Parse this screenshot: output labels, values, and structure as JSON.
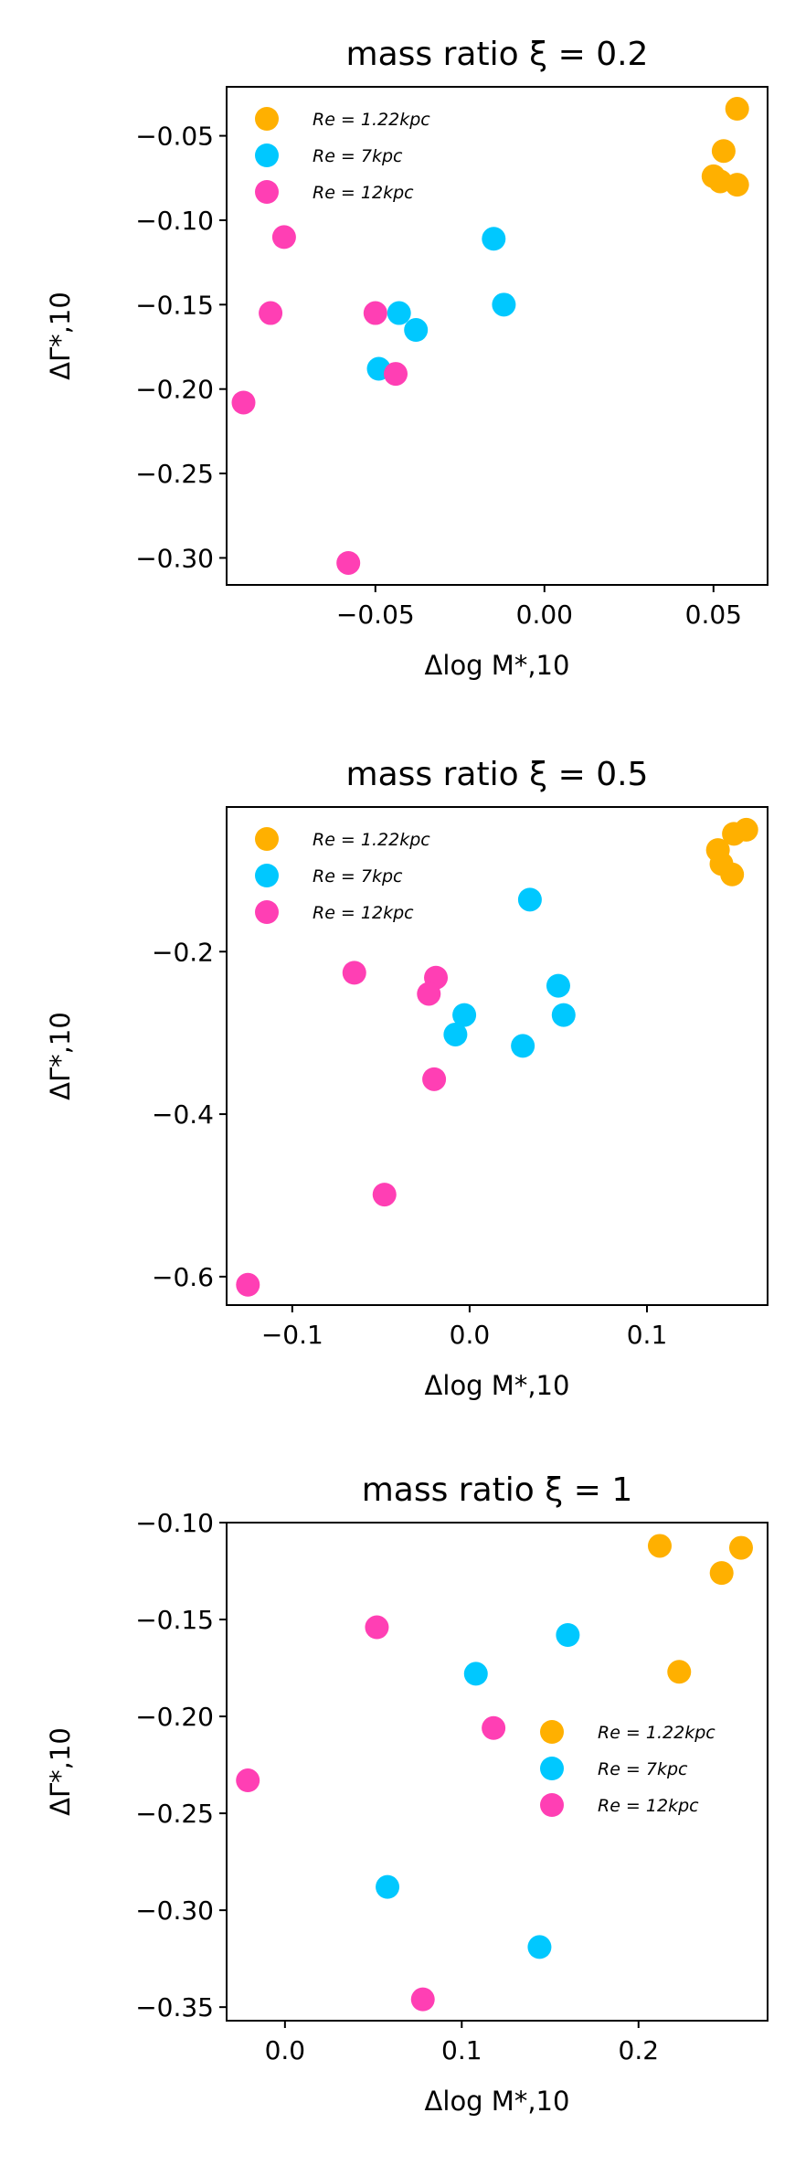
{
  "figure": {
    "colors": {
      "orange": "#FFB000",
      "cyan": "#00C8FF",
      "magenta": "#FF3FB4"
    },
    "xlabel": "Δlog M*,10",
    "ylabel": "ΔΓ*,10"
  },
  "chart_data": [
    {
      "type": "scatter",
      "title": "mass ratio ξ = 0.2",
      "xlabel": "Δlog M*,10",
      "ylabel": "ΔΓ*,10",
      "xlim": [
        -0.094,
        0.066
      ],
      "ylim": [
        -0.316,
        -0.021
      ],
      "xticks": [
        -0.05,
        0.0,
        0.05
      ],
      "xtick_labels": [
        "−0.05",
        "0.00",
        "0.05"
      ],
      "yticks": [
        -0.05,
        -0.1,
        -0.15,
        -0.2,
        -0.25,
        -0.3
      ],
      "ytick_labels": [
        "−0.05",
        "−0.10",
        "−0.15",
        "−0.20",
        "−0.25",
        "−0.30"
      ],
      "legend": "top-left",
      "series": [
        {
          "name": "Re = 1.22kpc",
          "color": "#FFB000",
          "points": [
            [
              0.057,
              -0.034
            ],
            [
              0.053,
              -0.059
            ],
            [
              0.05,
              -0.074
            ],
            [
              0.052,
              -0.077
            ],
            [
              0.057,
              -0.079
            ]
          ]
        },
        {
          "name": "Re = 7kpc",
          "color": "#00C8FF",
          "points": [
            [
              -0.015,
              -0.111
            ],
            [
              -0.012,
              -0.15
            ],
            [
              -0.043,
              -0.155
            ],
            [
              -0.038,
              -0.165
            ],
            [
              -0.049,
              -0.188
            ]
          ]
        },
        {
          "name": "Re = 12kpc",
          "color": "#FF3FB4",
          "points": [
            [
              -0.077,
              -0.11
            ],
            [
              -0.081,
              -0.155
            ],
            [
              -0.05,
              -0.155
            ],
            [
              -0.044,
              -0.191
            ],
            [
              -0.089,
              -0.208
            ],
            [
              -0.058,
              -0.303
            ]
          ]
        }
      ]
    },
    {
      "type": "scatter",
      "title": "mass ratio ξ = 0.5",
      "xlabel": "Δlog M*,10",
      "ylabel": "ΔΓ*,10",
      "xlim": [
        -0.137,
        0.168
      ],
      "ylim": [
        -0.635,
        -0.022
      ],
      "xticks": [
        -0.1,
        0.0,
        0.1
      ],
      "xtick_labels": [
        "−0.1",
        "0.0",
        "0.1"
      ],
      "yticks": [
        -0.2,
        -0.4,
        -0.6
      ],
      "ytick_labels": [
        "−0.2",
        "−0.4",
        "−0.6"
      ],
      "legend": "top-left",
      "series": [
        {
          "name": "Re = 1.22kpc",
          "color": "#FFB000",
          "points": [
            [
              0.156,
              -0.05
            ],
            [
              0.149,
              -0.055
            ],
            [
              0.14,
              -0.075
            ],
            [
              0.142,
              -0.092
            ],
            [
              0.148,
              -0.105
            ]
          ]
        },
        {
          "name": "Re = 7kpc",
          "color": "#00C8FF",
          "points": [
            [
              0.034,
              -0.136
            ],
            [
              0.05,
              -0.242
            ],
            [
              0.053,
              -0.278
            ],
            [
              -0.003,
              -0.278
            ],
            [
              -0.008,
              -0.302
            ],
            [
              0.03,
              -0.316
            ]
          ]
        },
        {
          "name": "Re = 12kpc",
          "color": "#FF3FB4",
          "points": [
            [
              -0.065,
              -0.226
            ],
            [
              -0.019,
              -0.232
            ],
            [
              -0.023,
              -0.252
            ],
            [
              -0.02,
              -0.357
            ],
            [
              -0.048,
              -0.499
            ],
            [
              -0.125,
              -0.61
            ]
          ]
        }
      ]
    },
    {
      "type": "scatter",
      "title": "mass ratio ξ = 1",
      "xlabel": "Δlog M*,10",
      "ylabel": "ΔΓ*,10",
      "xlim": [
        -0.033,
        0.273
      ],
      "ylim": [
        -0.357,
        -0.1
      ],
      "xticks": [
        0.0,
        0.1,
        0.2
      ],
      "xtick_labels": [
        "0.0",
        "0.1",
        "0.2"
      ],
      "yticks": [
        -0.1,
        -0.15,
        -0.2,
        -0.25,
        -0.3,
        -0.35
      ],
      "ytick_labels": [
        "−0.10",
        "−0.15",
        "−0.20",
        "−0.25",
        "−0.30",
        "−0.35"
      ],
      "legend": "center-right",
      "series": [
        {
          "name": "Re = 1.22kpc",
          "color": "#FFB000",
          "points": [
            [
              0.212,
              -0.112
            ],
            [
              0.258,
              -0.113
            ],
            [
              0.247,
              -0.126
            ],
            [
              0.223,
              -0.177
            ]
          ]
        },
        {
          "name": "Re = 7kpc",
          "color": "#00C8FF",
          "points": [
            [
              0.16,
              -0.158
            ],
            [
              0.108,
              -0.178
            ],
            [
              0.058,
              -0.288
            ],
            [
              0.144,
              -0.319
            ]
          ]
        },
        {
          "name": "Re = 12kpc",
          "color": "#FF3FB4",
          "points": [
            [
              0.052,
              -0.154
            ],
            [
              0.118,
              -0.206
            ],
            [
              -0.021,
              -0.233
            ],
            [
              0.078,
              -0.346
            ]
          ]
        }
      ]
    }
  ]
}
